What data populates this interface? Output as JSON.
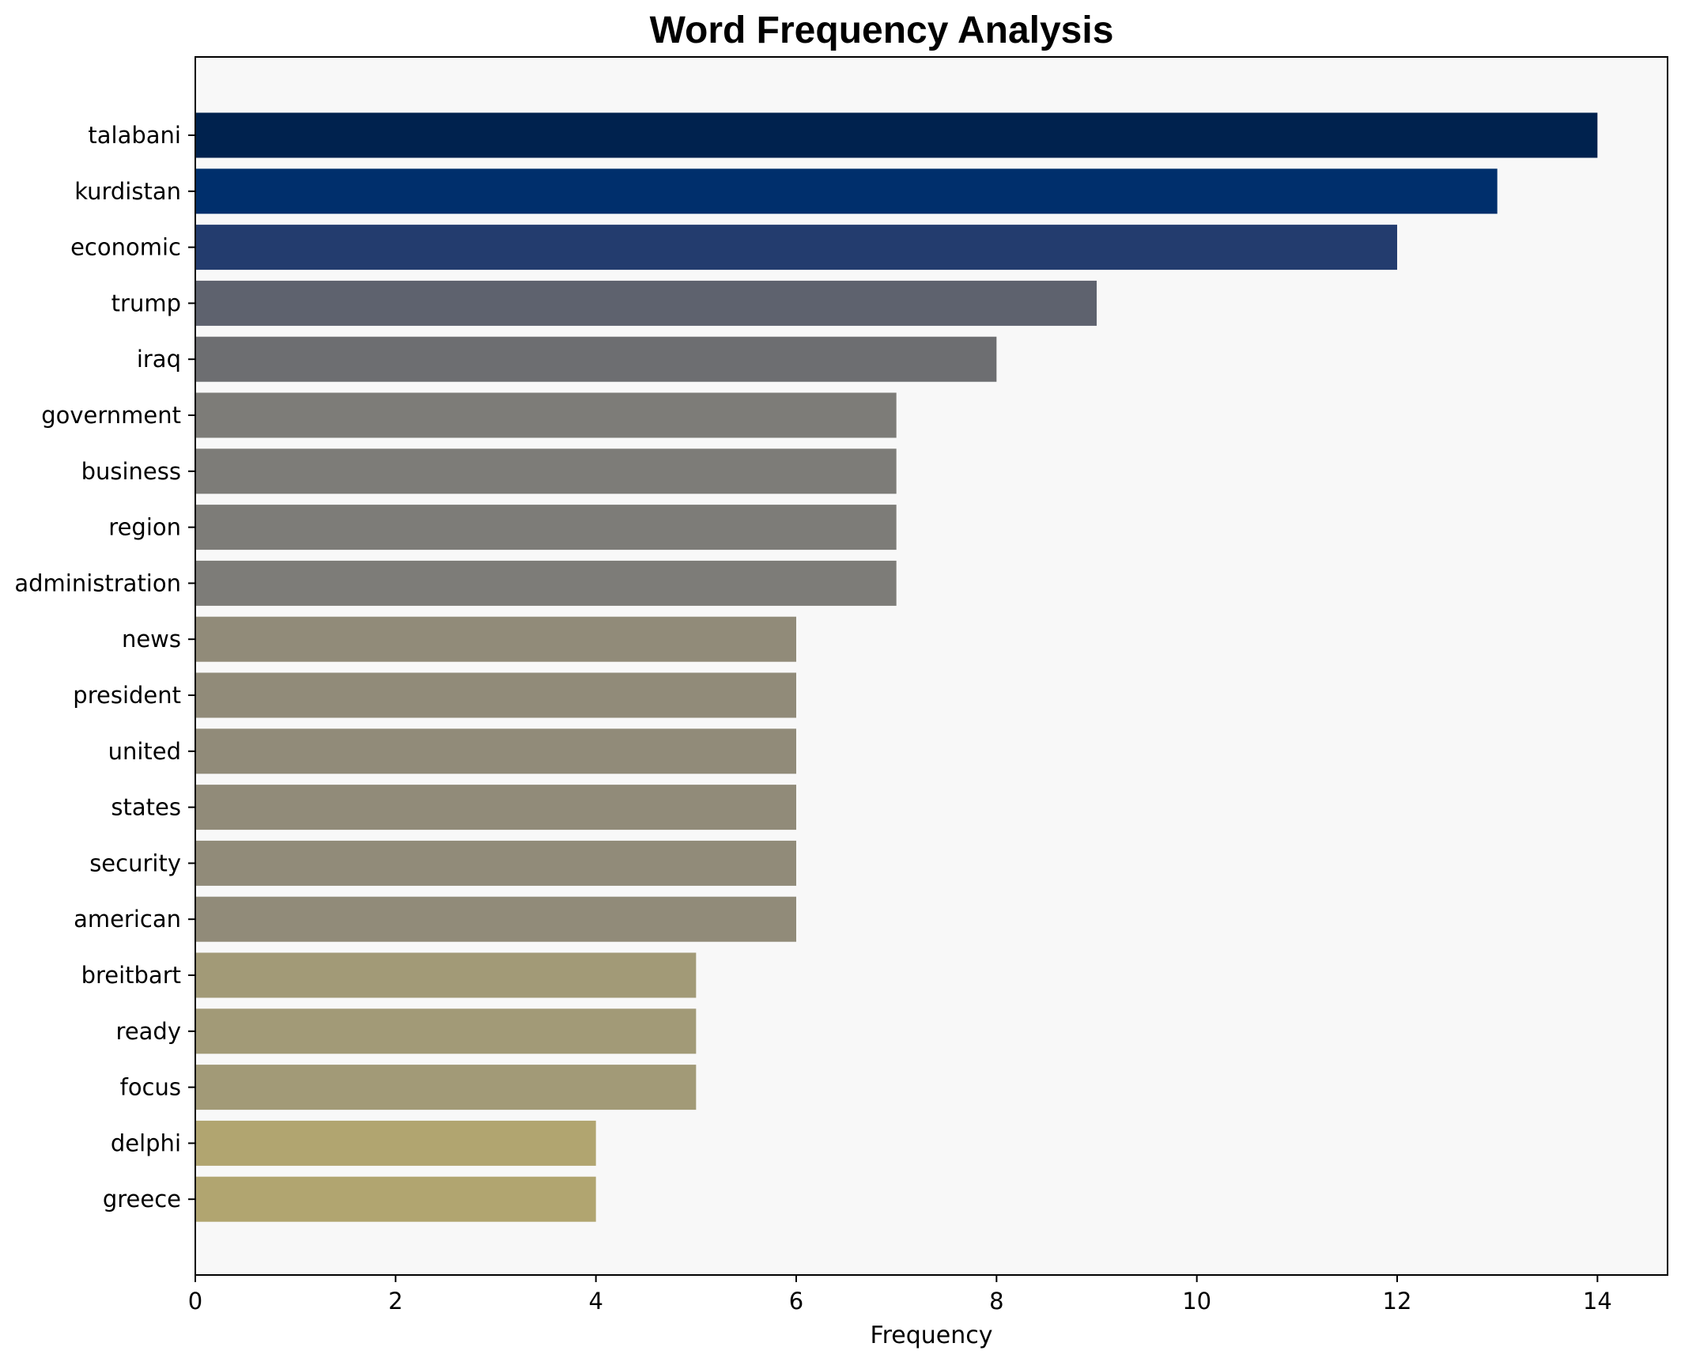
{
  "chart_data": {
    "type": "bar",
    "orientation": "horizontal",
    "title": "Word Frequency Analysis",
    "xlabel": "Frequency",
    "ylabel": "",
    "xlim": [
      0,
      14.7
    ],
    "xticks": [
      0,
      2,
      4,
      6,
      8,
      10,
      12,
      14
    ],
    "grid": false,
    "categories": [
      "talabani",
      "kurdistan",
      "economic",
      "trump",
      "iraq",
      "government",
      "business",
      "region",
      "administration",
      "news",
      "president",
      "united",
      "states",
      "security",
      "american",
      "breitbart",
      "ready",
      "focus",
      "delphi",
      "greece"
    ],
    "values": [
      14,
      13,
      12,
      9,
      8,
      7,
      7,
      7,
      7,
      6,
      6,
      6,
      6,
      6,
      6,
      5,
      5,
      5,
      4,
      4
    ],
    "colors": [
      "#00224e",
      "#002f6c",
      "#233c6e",
      "#5e626e",
      "#6d6e71",
      "#7d7c78",
      "#7d7c78",
      "#7d7c78",
      "#7d7c78",
      "#918b79",
      "#918b79",
      "#918b79",
      "#918b79",
      "#918b79",
      "#918b79",
      "#a29a77",
      "#a29a77",
      "#a29a77",
      "#b1a570",
      "#b1a570"
    ],
    "plot_background": "#f8f8f8"
  }
}
